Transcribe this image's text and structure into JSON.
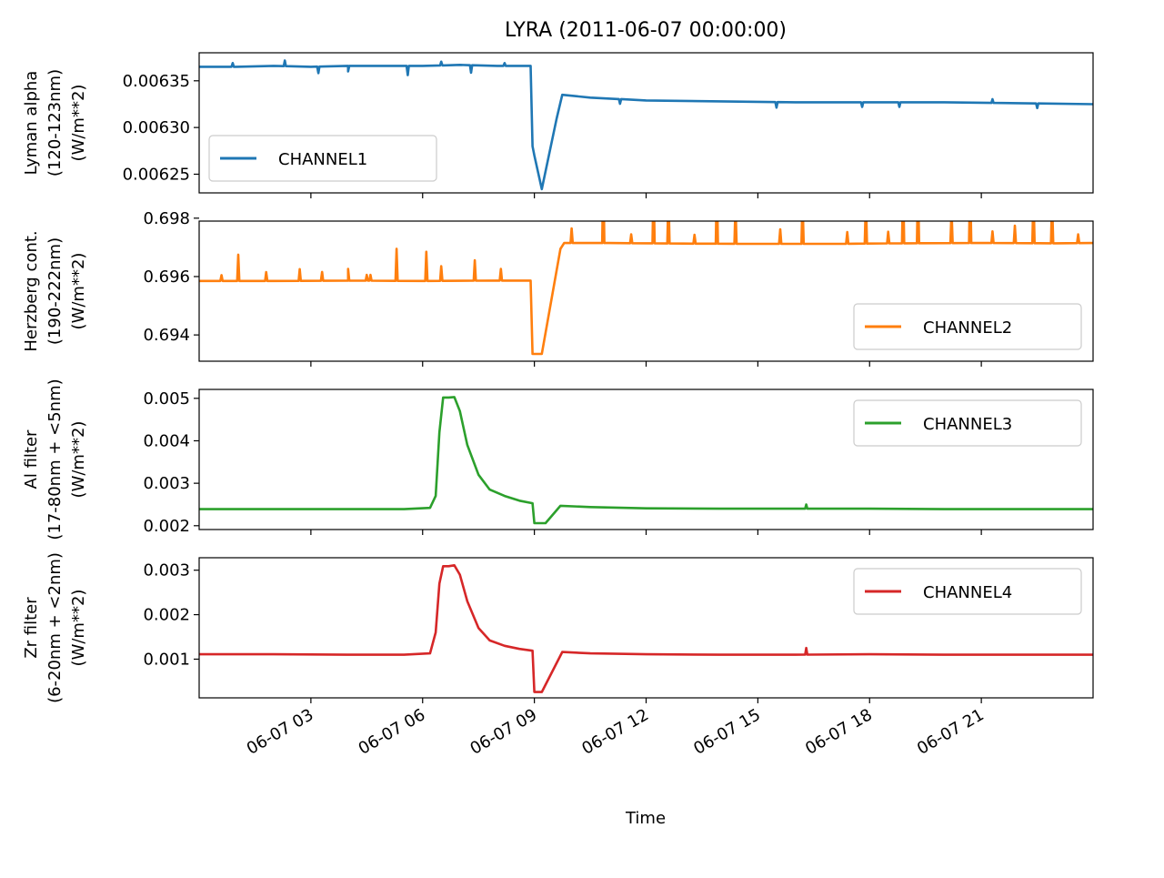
{
  "chart_data": {
    "type": "line",
    "title": "LYRA (2011-06-07 00:00:00)",
    "xlabel": "Time",
    "x_range_hours": [
      0,
      24
    ],
    "x_ticks": [
      {
        "hour": 3,
        "label": "06-07 03"
      },
      {
        "hour": 6,
        "label": "06-07 06"
      },
      {
        "hour": 9,
        "label": "06-07 09"
      },
      {
        "hour": 12,
        "label": "06-07 12"
      },
      {
        "hour": 15,
        "label": "06-07 15"
      },
      {
        "hour": 18,
        "label": "06-07 18"
      },
      {
        "hour": 21,
        "label": "06-07 21"
      }
    ],
    "panels": [
      {
        "name": "CHANNEL1",
        "color": "#1f77b4",
        "ylabel_lines": [
          "Lyman alpha",
          "(120-123nm)",
          "(W/m**2)"
        ],
        "ylim": [
          0.00623,
          0.00638
        ],
        "yticks": [
          0.00625,
          0.0063,
          0.00635
        ],
        "ytick_labels": [
          "0.00625",
          "0.00630",
          "0.00635"
        ],
        "legend": "lower-left",
        "x": [
          0,
          1,
          2,
          3,
          4,
          5,
          6,
          7,
          8,
          8.9,
          8.95,
          9.0,
          9.2,
          9.6,
          9.75,
          10.5,
          12,
          14,
          16,
          18,
          20,
          22,
          24
        ],
        "y": [
          0.006365,
          0.006365,
          0.006366,
          0.006365,
          0.006366,
          0.006366,
          0.006366,
          0.006367,
          0.006366,
          0.006366,
          0.00628,
          0.00627,
          0.006234,
          0.00631,
          0.006335,
          0.006332,
          0.006329,
          0.006328,
          0.006327,
          0.006327,
          0.006327,
          0.006326,
          0.006325
        ],
        "spikes": [
          {
            "x": 0.9,
            "dy": 4e-06
          },
          {
            "x": 2.3,
            "dy": 6e-06
          },
          {
            "x": 3.2,
            "dy": -7e-06
          },
          {
            "x": 4.0,
            "dy": -6e-06
          },
          {
            "x": 5.6,
            "dy": -1e-05
          },
          {
            "x": 6.5,
            "dy": 4e-06
          },
          {
            "x": 7.3,
            "dy": -8e-06
          },
          {
            "x": 8.2,
            "dy": 3e-06
          },
          {
            "x": 11.3,
            "dy": -5e-06
          },
          {
            "x": 15.5,
            "dy": -6e-06
          },
          {
            "x": 17.8,
            "dy": -5e-06
          },
          {
            "x": 18.8,
            "dy": -5e-06
          },
          {
            "x": 21.3,
            "dy": 4e-06
          },
          {
            "x": 22.5,
            "dy": -5e-06
          }
        ]
      },
      {
        "name": "CHANNEL2",
        "color": "#ff7f0e",
        "ylabel_lines": [
          "Herzberg cont.",
          "(190-222nm)",
          "(W/m**2)"
        ],
        "ylim": [
          0.6931,
          0.6979
        ],
        "yticks": [
          0.694,
          0.696,
          0.698
        ],
        "ytick_labels": [
          "0.694",
          "0.696",
          "0.698"
        ],
        "legend": "lower-right",
        "x": [
          0,
          2,
          4,
          6,
          8,
          8.9,
          8.95,
          9.2,
          9.7,
          9.8,
          11,
          13,
          15,
          17,
          19,
          21,
          23,
          24
        ],
        "y": [
          0.69585,
          0.69585,
          0.69586,
          0.69585,
          0.69586,
          0.69586,
          0.69335,
          0.69335,
          0.69695,
          0.69715,
          0.69715,
          0.69713,
          0.69712,
          0.69712,
          0.69714,
          0.69715,
          0.69714,
          0.69715
        ],
        "spikes": [
          {
            "x": 0.6,
            "dy": 0.0002
          },
          {
            "x": 1.05,
            "dy": 0.0009
          },
          {
            "x": 1.8,
            "dy": 0.0003
          },
          {
            "x": 2.7,
            "dy": 0.0004
          },
          {
            "x": 3.3,
            "dy": 0.0003
          },
          {
            "x": 4.0,
            "dy": 0.0004
          },
          {
            "x": 4.5,
            "dy": 0.0002
          },
          {
            "x": 4.5,
            "dy": 0.0002
          },
          {
            "x": 4.6,
            "dy": 0.0002
          },
          {
            "x": 5.3,
            "dy": 0.0011
          },
          {
            "x": 6.1,
            "dy": 0.001
          },
          {
            "x": 6.5,
            "dy": 0.0005
          },
          {
            "x": 7.4,
            "dy": 0.0007
          },
          {
            "x": 8.1,
            "dy": 0.0004
          },
          {
            "x": 10.0,
            "dy": 0.0005
          },
          {
            "x": 10.85,
            "dy": 0.0025
          },
          {
            "x": 11.6,
            "dy": 0.0003
          },
          {
            "x": 12.2,
            "dy": 0.0021
          },
          {
            "x": 12.6,
            "dy": 0.0017
          },
          {
            "x": 13.3,
            "dy": 0.0003
          },
          {
            "x": 13.9,
            "dy": 0.0022
          },
          {
            "x": 14.4,
            "dy": 0.0013
          },
          {
            "x": 15.6,
            "dy": 0.0005
          },
          {
            "x": 16.2,
            "dy": 0.0015
          },
          {
            "x": 17.4,
            "dy": 0.0004
          },
          {
            "x": 17.9,
            "dy": 0.0015
          },
          {
            "x": 18.5,
            "dy": 0.0004
          },
          {
            "x": 18.9,
            "dy": 0.0022
          },
          {
            "x": 19.3,
            "dy": 0.0021
          },
          {
            "x": 20.2,
            "dy": 0.0011
          },
          {
            "x": 20.7,
            "dy": 0.0022
          },
          {
            "x": 21.3,
            "dy": 0.0004
          },
          {
            "x": 21.9,
            "dy": 0.0006
          },
          {
            "x": 22.4,
            "dy": 0.0017
          },
          {
            "x": 22.9,
            "dy": 0.0015
          },
          {
            "x": 23.6,
            "dy": 0.0003
          }
        ]
      },
      {
        "name": "CHANNEL3",
        "color": "#2ca02c",
        "ylabel_lines": [
          "Al filter",
          "(17-80nm + <5nm)",
          "(W/m**2)"
        ],
        "ylim": [
          0.00191,
          0.00521
        ],
        "yticks": [
          0.002,
          0.003,
          0.004,
          0.005
        ],
        "ytick_labels": [
          "0.002",
          "0.003",
          "0.004",
          "0.005"
        ],
        "legend": "upper-right",
        "x": [
          0,
          2,
          4,
          5.5,
          6.2,
          6.35,
          6.45,
          6.55,
          6.7,
          6.85,
          7.0,
          7.2,
          7.5,
          7.8,
          8.2,
          8.6,
          8.95,
          9.0,
          9.3,
          9.7,
          10.5,
          12,
          14,
          16,
          18,
          20,
          22,
          24
        ],
        "y": [
          0.00239,
          0.00239,
          0.00239,
          0.00239,
          0.00242,
          0.0027,
          0.0042,
          0.00502,
          0.00502,
          0.00503,
          0.0047,
          0.0039,
          0.0032,
          0.00285,
          0.0027,
          0.00259,
          0.00253,
          0.00206,
          0.00206,
          0.00247,
          0.00244,
          0.00241,
          0.0024,
          0.0024,
          0.0024,
          0.00239,
          0.00239,
          0.00239
        ],
        "spikes": [
          {
            "x": 16.3,
            "dy": 0.0001
          }
        ]
      },
      {
        "name": "CHANNEL4",
        "color": "#d62728",
        "ylabel_lines": [
          "Zr filter",
          "(6-20nm + <2nm)",
          "(W/m**2)"
        ],
        "ylim": [
          0.00013,
          0.00328
        ],
        "yticks": [
          0.001,
          0.002,
          0.003
        ],
        "ytick_labels": [
          "0.001",
          "0.002",
          "0.003"
        ],
        "legend": "upper-right",
        "x": [
          0,
          2,
          4,
          5.5,
          6.2,
          6.35,
          6.45,
          6.55,
          6.7,
          6.85,
          7.0,
          7.2,
          7.5,
          7.8,
          8.2,
          8.6,
          8.95,
          9.0,
          9.2,
          9.75,
          10.5,
          12,
          14,
          16,
          18,
          20,
          22,
          24
        ],
        "y": [
          0.00111,
          0.00111,
          0.0011,
          0.0011,
          0.00113,
          0.0016,
          0.0027,
          0.00309,
          0.00309,
          0.00311,
          0.0029,
          0.0023,
          0.0017,
          0.00142,
          0.0013,
          0.00123,
          0.00119,
          0.00026,
          0.00026,
          0.00116,
          0.00113,
          0.00111,
          0.0011,
          0.0011,
          0.00111,
          0.0011,
          0.0011,
          0.0011
        ],
        "spikes": [
          {
            "x": 16.3,
            "dy": 0.00015
          }
        ]
      }
    ]
  }
}
